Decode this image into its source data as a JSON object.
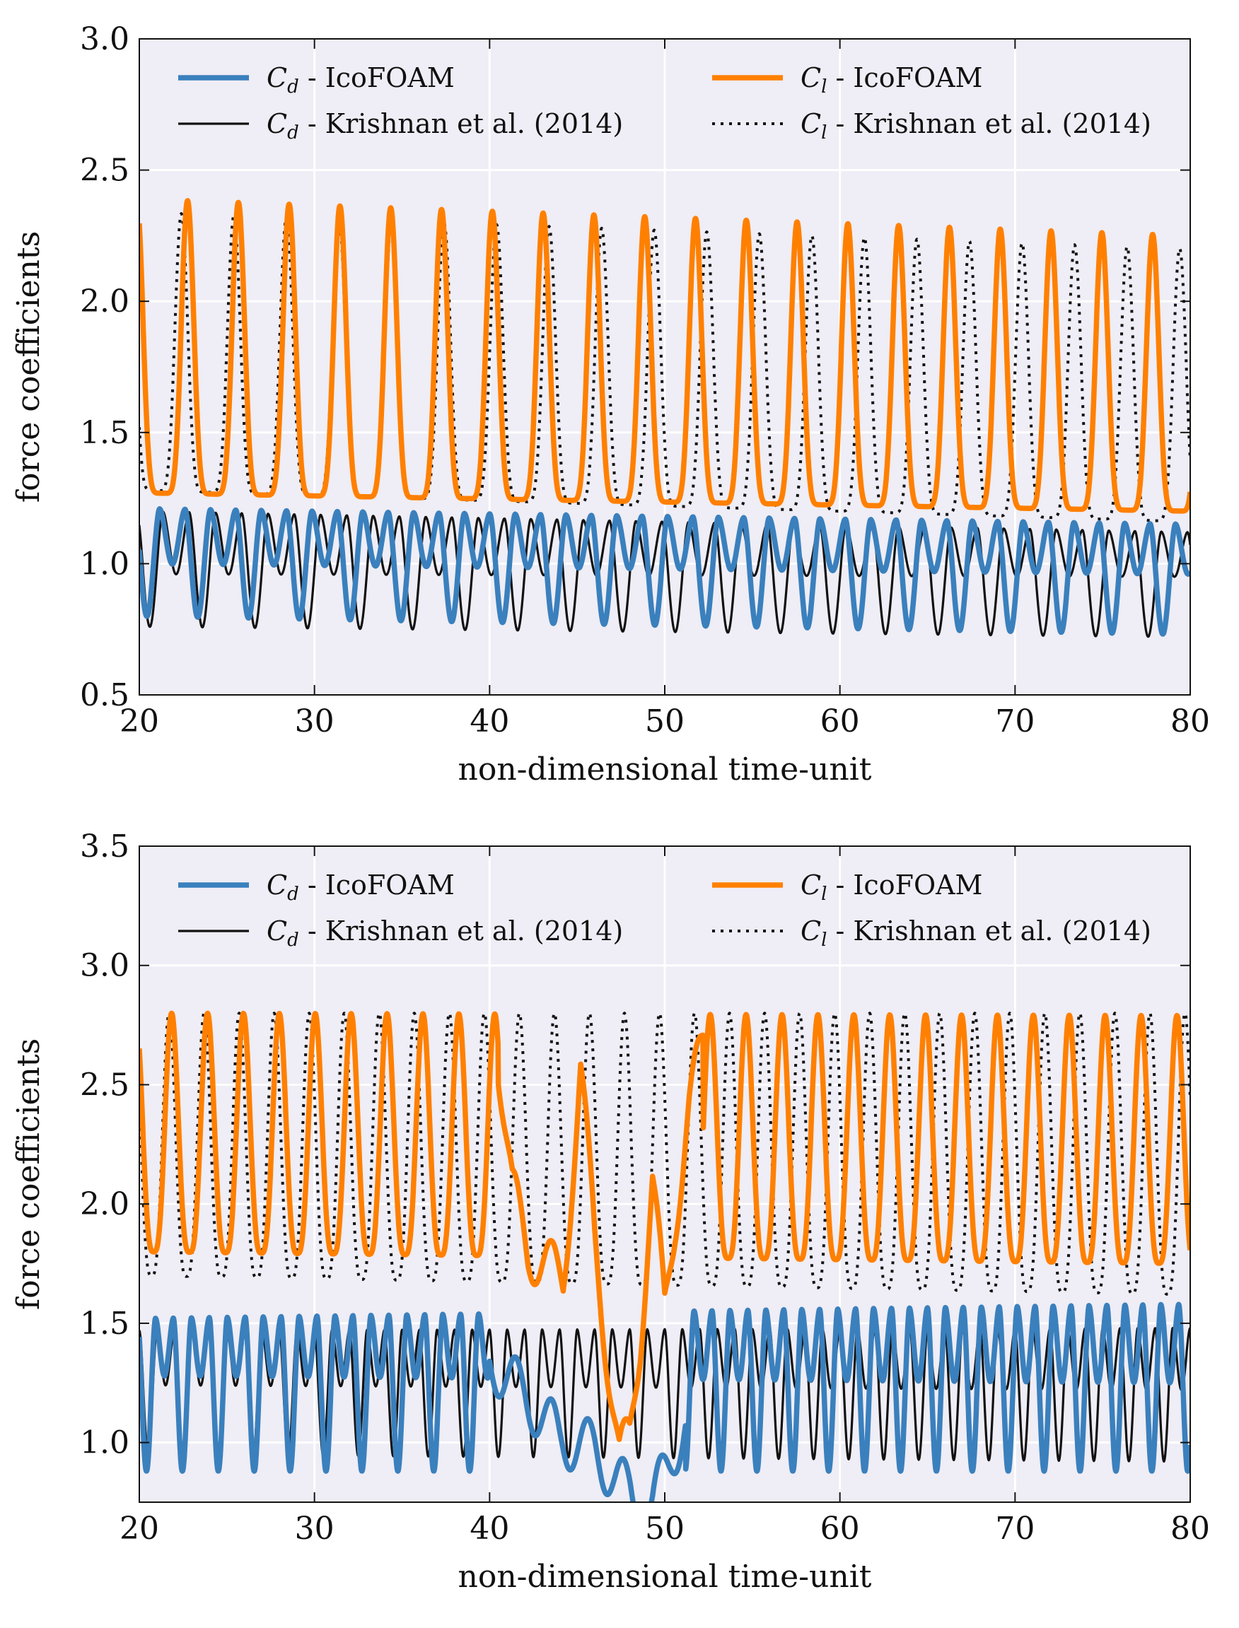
{
  "chart_data": [
    {
      "type": "line",
      "panel": "top",
      "xlabel": "non-dimensional time-unit",
      "ylabel": "force coefficients",
      "xlim": [
        20,
        80
      ],
      "ylim": [
        0.5,
        3.0
      ],
      "xticks": [
        20,
        30,
        40,
        50,
        60,
        70,
        80
      ],
      "yticks": [
        0.5,
        1.0,
        1.5,
        2.0,
        2.5,
        3.0
      ],
      "xtick_labels": [
        "20",
        "30",
        "40",
        "50",
        "60",
        "70",
        "80"
      ],
      "ytick_labels": [
        "0.5",
        "1.0",
        "1.5",
        "2.0",
        "2.5",
        "3.0"
      ],
      "grid": true,
      "legend_placement": "top, two columns",
      "legend": [
        {
          "symbol": "C",
          "sub": "d",
          "text": " - IcoFOAM",
          "color": "#3a80bd",
          "style": "solid-thick"
        },
        {
          "symbol": "C",
          "sub": "d",
          "text": " - Krishnan et al. (2014)",
          "color": "#111111",
          "style": "solid-thin"
        },
        {
          "symbol": "C",
          "sub": "l",
          "text": " - IcoFOAM",
          "color": "#ff8000",
          "style": "solid-thick"
        },
        {
          "symbol": "C",
          "sub": "l",
          "text": " - Krishnan et al. (2014)",
          "color": "#111111",
          "style": "dotted"
        }
      ],
      "series": [
        {
          "name": "Cd - IcoFOAM",
          "style": "solid-thick",
          "color": "#3a80bd",
          "x_start": 20,
          "x_end": 80,
          "model": {
            "kind": "double-freq",
            "period": 2.9,
            "phase": 0.35,
            "main_min": [
              0.8,
              0.73
            ],
            "main_max": [
              1.21,
              1.15
            ],
            "sec_min": [
              1.0,
              0.96
            ]
          }
        },
        {
          "name": "Cd - Krishnan et al. (2014)",
          "style": "solid-thin",
          "color": "#111111",
          "x_start": 20,
          "x_end": 80,
          "model": {
            "kind": "double-freq",
            "period": 3.0,
            "phase": 0.3,
            "main_min": [
              0.76,
              0.72
            ],
            "main_max": [
              1.2,
              1.12
            ],
            "sec_min": [
              0.96,
              0.95
            ]
          }
        },
        {
          "name": "Cl - IcoFOAM",
          "style": "solid-thick",
          "color": "#ff8000",
          "x_start": 20,
          "x_end": 80,
          "model": {
            "kind": "peaked",
            "period": 2.9,
            "phase": 0.05,
            "min": [
              1.27,
              1.2
            ],
            "max": [
              2.39,
              2.25
            ],
            "sharp": 3.5
          }
        },
        {
          "name": "Cl - Krishnan et al. (2014)",
          "style": "dotted",
          "color": "#111111",
          "x_start": 20,
          "x_end": 80,
          "model": {
            "kind": "peaked",
            "period": 3.0,
            "phase": 0.2,
            "min": [
              1.28,
              1.16
            ],
            "max": [
              2.34,
              2.2
            ],
            "sharp": 3.5
          }
        }
      ]
    },
    {
      "type": "line",
      "panel": "bottom",
      "xlabel": "non-dimensional time-unit",
      "ylabel": "force coefficients",
      "xlim": [
        20,
        80
      ],
      "ylim": [
        0.75,
        3.5
      ],
      "xticks": [
        20,
        30,
        40,
        50,
        60,
        70,
        80
      ],
      "yticks": [
        1.0,
        1.5,
        2.0,
        2.5,
        3.0,
        3.5
      ],
      "xtick_labels": [
        "20",
        "30",
        "40",
        "50",
        "60",
        "70",
        "80"
      ],
      "ytick_labels": [
        "1.0",
        "1.5",
        "2.0",
        "2.5",
        "3.0",
        "3.5"
      ],
      "grid": true,
      "legend_placement": "top, two columns",
      "legend": [
        {
          "symbol": "C",
          "sub": "d",
          "text": " - IcoFOAM",
          "color": "#3a80bd",
          "style": "solid-thick"
        },
        {
          "symbol": "C",
          "sub": "d",
          "text": " - Krishnan et al. (2014)",
          "color": "#111111",
          "style": "solid-thin"
        },
        {
          "symbol": "C",
          "sub": "l",
          "text": " - IcoFOAM",
          "color": "#ff8000",
          "style": "solid-thick"
        },
        {
          "symbol": "C",
          "sub": "l",
          "text": " - Krishnan et al. (2014)",
          "color": "#111111",
          "style": "dotted"
        }
      ],
      "series": [
        {
          "name": "Cd - IcoFOAM",
          "style": "solid-thick",
          "color": "#3a80bd",
          "x_start": 20,
          "x_end": 80,
          "model": {
            "kind": "double-freq",
            "period": 2.05,
            "phase": 0.3,
            "main_min": [
              0.88,
              0.88
            ],
            "main_max": [
              1.52,
              1.58
            ],
            "sec_min": [
              1.28,
              1.25
            ]
          },
          "disturbance": {
            "x": [
              40,
              42,
              44,
              46,
              47.2,
              48,
              48.6,
              49.3,
              50.2,
              51.2
            ],
            "y": [
              1.35,
              1.2,
              1.02,
              0.97,
              0.85,
              0.78,
              0.7,
              0.74,
              0.9,
              1.1
            ]
          }
        },
        {
          "name": "Cd - Krishnan et al. (2014)",
          "style": "solid-thin",
          "color": "#111111",
          "x_start": 20,
          "x_end": 80,
          "model": {
            "kind": "double-freq",
            "period": 2.0,
            "phase": 0.25,
            "main_min": [
              0.95,
              0.92
            ],
            "main_max": [
              1.47,
              1.48
            ],
            "sec_min": [
              1.24,
              1.22
            ]
          }
        },
        {
          "name": "Cl - IcoFOAM",
          "style": "solid-thick",
          "color": "#ff8000",
          "x_start": 20,
          "x_end": 80,
          "model": {
            "kind": "peaked",
            "period": 2.05,
            "phase": 0.1,
            "min": [
              1.8,
              1.75
            ],
            "max": [
              2.8,
              2.79
            ],
            "sharp": 1.6
          },
          "disturbance": {
            "x": [
              40.5,
              41.3,
              42.2,
              43.2,
              44.2,
              45.2,
              46.0,
              46.8,
              47.4,
              48.0,
              48.6,
              49.3,
              50.0,
              50.6,
              51.4,
              52.2
            ],
            "y": [
              2.62,
              2.05,
              1.8,
              1.75,
              1.68,
              2.55,
              1.85,
              1.32,
              0.93,
              1.02,
              1.45,
              2.08,
              1.55,
              1.95,
              2.4,
              2.68
            ]
          }
        },
        {
          "name": "Cl - Krishnan et al. (2014)",
          "style": "dotted",
          "color": "#111111",
          "x_start": 20,
          "x_end": 80,
          "model": {
            "kind": "peaked",
            "period": 2.0,
            "phase": 0.15,
            "min": [
              1.7,
              1.62
            ],
            "max": [
              2.8,
              2.8
            ],
            "sharp": 1.6
          }
        }
      ]
    }
  ]
}
